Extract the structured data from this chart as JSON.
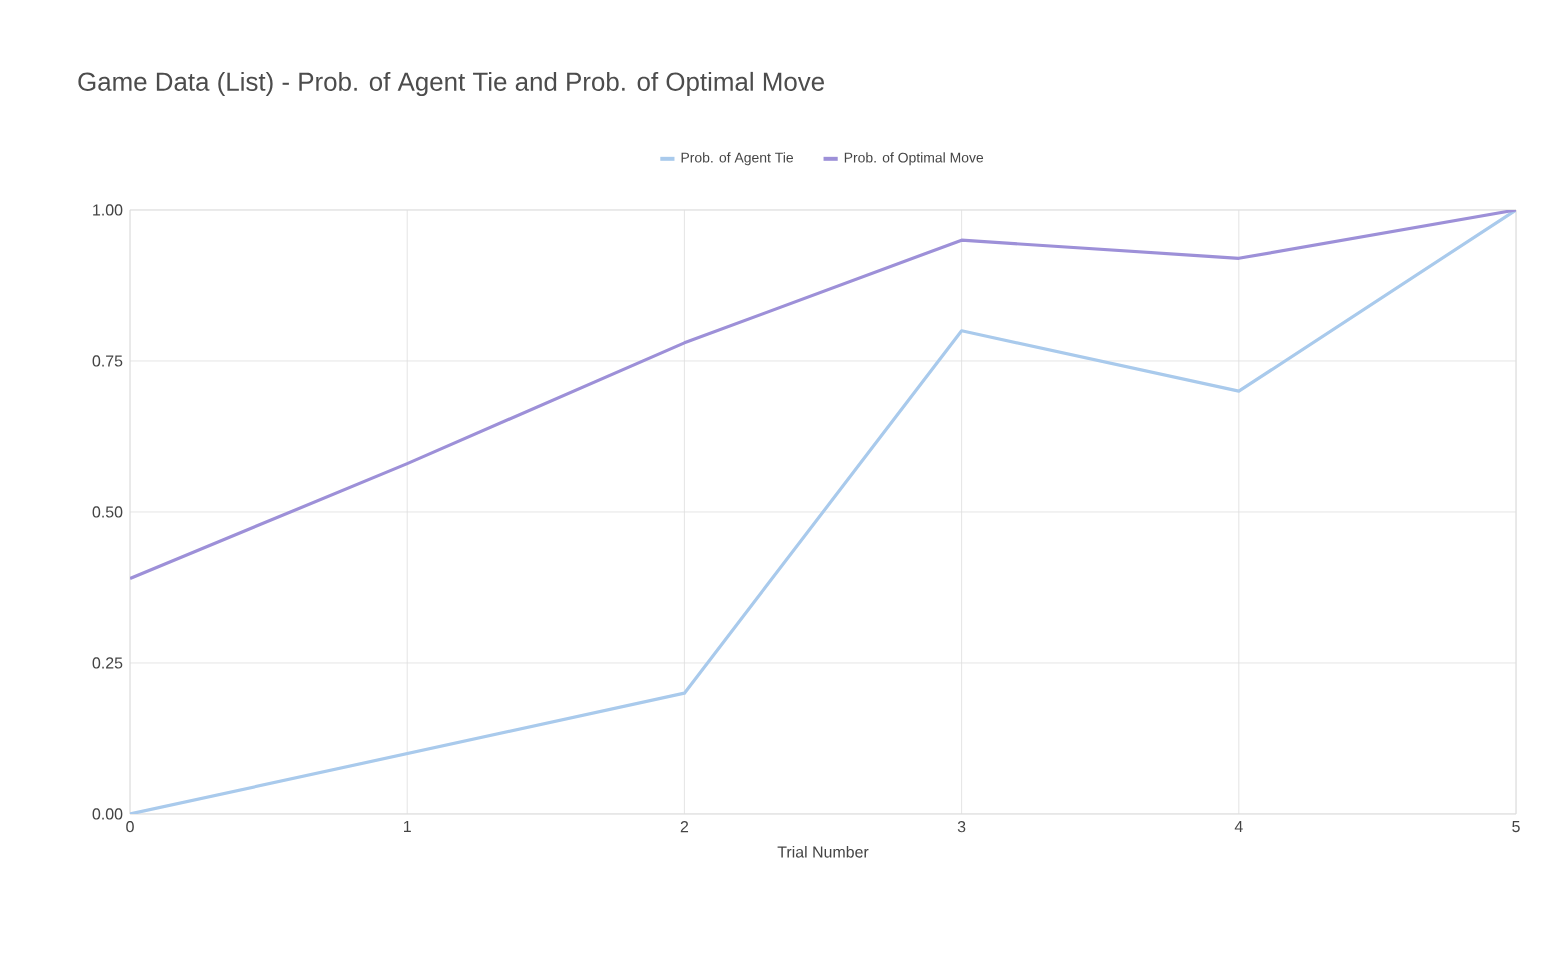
{
  "chart_data": {
    "type": "line",
    "title": "Game Data (List) - Prob. of Agent Tie and Prob. of Optimal Move",
    "xlabel": "Trial Number",
    "x": [
      0,
      1,
      2,
      3,
      4,
      5
    ],
    "series": [
      {
        "name": "Prob. of Agent Tie",
        "color": "#a9caec",
        "values": [
          0,
          0.1,
          0.2,
          0.8,
          0.7,
          1.0
        ]
      },
      {
        "name": "Prob. of Optimal Move",
        "color": "#9d90d8",
        "values": [
          0.39,
          0.58,
          0.78,
          0.95,
          0.92,
          1.0
        ]
      }
    ],
    "xlim": [
      0,
      5
    ],
    "xticks": [
      0,
      1,
      2,
      3,
      4,
      5
    ],
    "ylim": [
      0,
      1
    ],
    "yticks": [
      {
        "value": 0,
        "label": "0.00"
      },
      {
        "value": 0.25,
        "label": "0.25"
      },
      {
        "value": 0.5,
        "label": "0.50"
      },
      {
        "value": 0.75,
        "label": "0.75"
      },
      {
        "value": 1,
        "label": "1.00"
      }
    ],
    "grid": true,
    "legend": "top"
  }
}
